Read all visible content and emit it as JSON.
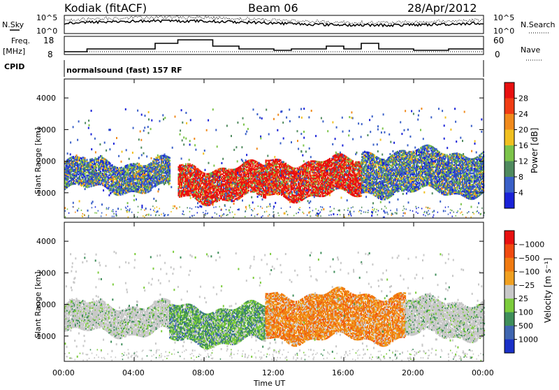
{
  "header": {
    "station": "Kodiak (fitACF)",
    "beam": "Beam 06",
    "date": "28/Apr/2012"
  },
  "top_panels": {
    "nsky_label": "N.Sky",
    "nsearch_label": "N.Search",
    "noise_tick_high": "10^5",
    "noise_tick_low": "10^0",
    "freq_label": "Freq.",
    "freq_unit": "[MHz]",
    "freq_tick_high": "18",
    "freq_tick_low": "8",
    "nave_label": "Nave",
    "nave_tick_high": "60",
    "nave_tick_low": "0",
    "cpid_label": "CPID",
    "cpid_value": "normalsound (fast) 157 RF"
  },
  "chart_data": [
    {
      "type": "heatmap",
      "name": "power",
      "ylabel": "Slant Range [km]",
      "ylim": [
        200,
        4600
      ],
      "yticks": [
        "1000",
        "2000",
        "3000",
        "4000"
      ],
      "colorbar_label": "Power [dB]",
      "colorbar_ticks": [
        "4",
        "8",
        "12",
        "16",
        "20",
        "24",
        "28"
      ],
      "colors": [
        "#1a22d8",
        "#3a60c8",
        "#4f8a5e",
        "#7cc44a",
        "#f0c020",
        "#f08a1c",
        "#f03c14",
        "#e81010"
      ],
      "regions": [
        {
          "t": [
            0.0,
            6.0
          ],
          "r": [
            1100,
            2000
          ],
          "level": "low"
        },
        {
          "t": [
            6.5,
            11.5
          ],
          "r": [
            800,
            1800
          ],
          "level": "high"
        },
        {
          "t": [
            11.5,
            17.0
          ],
          "r": [
            900,
            2000
          ],
          "level": "high"
        },
        {
          "t": [
            17.0,
            24.0
          ],
          "r": [
            1000,
            2300
          ],
          "level": "low"
        }
      ]
    },
    {
      "type": "heatmap",
      "name": "velocity",
      "xlabel": "Time UT",
      "ylabel": "Slant Range [km]",
      "ylim": [
        200,
        4600
      ],
      "yticks": [
        "1000",
        "2000",
        "3000",
        "4000"
      ],
      "colorbar_label": "Velocity [m s⁻¹]",
      "colorbar_ticks": [
        "1000",
        "500",
        "100",
        "25",
        "−25",
        "−100",
        "−500",
        "−1000"
      ],
      "colors": [
        "#1a30c8",
        "#3f66b0",
        "#3f8e5a",
        "#7ccc3c",
        "#c8c8c8",
        "#f0a020",
        "#f07a10",
        "#f04a10",
        "#e81010"
      ],
      "regions": [
        {
          "t": [
            0.0,
            6.0
          ],
          "r": [
            1100,
            2000
          ],
          "level": "ground"
        },
        {
          "t": [
            6.0,
            11.5
          ],
          "r": [
            800,
            1900
          ],
          "level": "positive"
        },
        {
          "t": [
            11.5,
            19.5
          ],
          "r": [
            900,
            2300
          ],
          "level": "negative"
        },
        {
          "t": [
            19.5,
            24.0
          ],
          "r": [
            1000,
            2100
          ],
          "level": "ground"
        }
      ]
    }
  ],
  "x_axis": {
    "ticks": [
      "00:00",
      "04:00",
      "08:00",
      "12:00",
      "16:00",
      "20:00",
      "00:00"
    ],
    "label": "Time UT"
  }
}
